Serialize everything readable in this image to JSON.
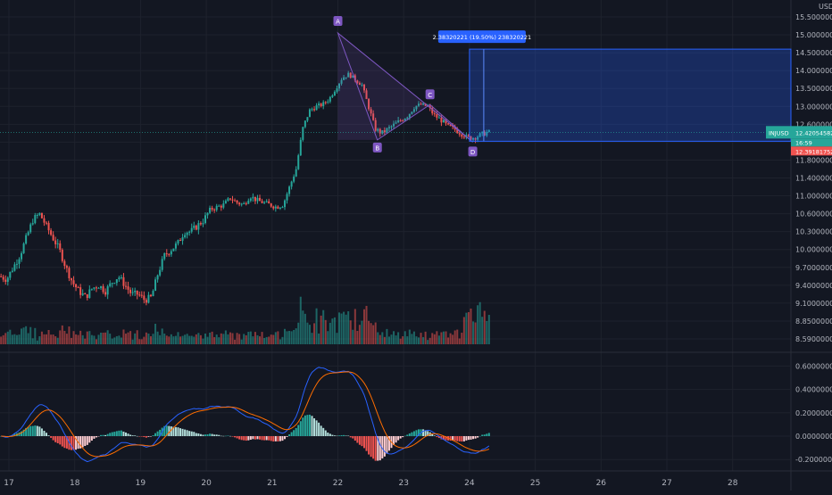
{
  "chart_data": {
    "type": "candlestick",
    "symbol": "INJUSD",
    "currency": "USD",
    "price_axis_ticks": [
      "15.50000000",
      "15.00000000",
      "14.50000000",
      "14.00000000",
      "13.50000000",
      "13.00000000",
      "12.60000000",
      "12.20000000",
      "11.80000000",
      "11.40000000",
      "11.00000000",
      "10.60000000",
      "10.30000000",
      "10.00000000",
      "9.70000000",
      "9.40000000",
      "9.10000000",
      "8.85000000",
      "8.59000000"
    ],
    "price_tick_values": [
      15.5,
      15.0,
      14.5,
      14.0,
      13.5,
      13.0,
      12.6,
      12.2,
      11.8,
      11.4,
      11.0,
      10.6,
      10.3,
      10.0,
      9.7,
      9.4,
      9.1,
      8.85,
      8.59
    ],
    "macd_axis_ticks": [
      "0.60000000",
      "0.40000000",
      "0.20000000",
      "0.00000000",
      "-0.20000000"
    ],
    "macd_tick_values": [
      0.6,
      0.4,
      0.2,
      0.0,
      -0.2
    ],
    "date_ticks": [
      "17",
      "18",
      "19",
      "20",
      "21",
      "22",
      "23",
      "24",
      "25",
      "26",
      "27",
      "28"
    ],
    "date_tick_values": [
      17,
      18,
      19,
      20,
      21,
      22,
      23,
      24,
      25,
      26,
      27,
      28
    ],
    "last_price_label": "INJUSD",
    "last_price": "12.42054582",
    "countdown": "16:59",
    "low_label": "12.39181752",
    "measure_label": "2.38320221 (19.50%) 238320221",
    "pattern_points": [
      "A",
      "B",
      "C",
      "D"
    ],
    "price_path": [
      [
        16.9,
        9.55
      ],
      [
        17.0,
        9.5
      ],
      [
        17.1,
        9.7
      ],
      [
        17.2,
        9.9
      ],
      [
        17.3,
        10.2
      ],
      [
        17.4,
        10.5
      ],
      [
        17.5,
        10.6
      ],
      [
        17.6,
        10.4
      ],
      [
        17.7,
        10.2
      ],
      [
        17.8,
        10.0
      ],
      [
        17.9,
        9.7
      ],
      [
        18.0,
        9.45
      ],
      [
        18.1,
        9.3
      ],
      [
        18.2,
        9.2
      ],
      [
        18.3,
        9.35
      ],
      [
        18.4,
        9.4
      ],
      [
        18.5,
        9.3
      ],
      [
        18.6,
        9.45
      ],
      [
        18.7,
        9.55
      ],
      [
        18.8,
        9.4
      ],
      [
        18.9,
        9.25
      ],
      [
        19.0,
        9.25
      ],
      [
        19.1,
        9.15
      ],
      [
        19.2,
        9.2
      ],
      [
        19.3,
        9.6
      ],
      [
        19.4,
        9.9
      ],
      [
        19.5,
        10.0
      ],
      [
        19.6,
        10.1
      ],
      [
        19.7,
        10.3
      ],
      [
        19.8,
        10.3
      ],
      [
        19.9,
        10.4
      ],
      [
        20.0,
        10.5
      ],
      [
        20.1,
        10.7
      ],
      [
        20.2,
        10.75
      ],
      [
        20.3,
        10.8
      ],
      [
        20.4,
        10.95
      ],
      [
        20.5,
        10.85
      ],
      [
        20.6,
        10.8
      ],
      [
        20.7,
        11.0
      ],
      [
        20.8,
        10.9
      ],
      [
        20.9,
        10.85
      ],
      [
        21.0,
        10.8
      ],
      [
        21.1,
        10.75
      ],
      [
        21.2,
        10.8
      ],
      [
        21.3,
        11.2
      ],
      [
        21.4,
        11.6
      ],
      [
        21.5,
        12.5
      ],
      [
        21.6,
        12.9
      ],
      [
        21.7,
        13.0
      ],
      [
        21.8,
        13.05
      ],
      [
        21.9,
        13.2
      ],
      [
        22.0,
        13.5
      ],
      [
        22.1,
        13.8
      ],
      [
        22.2,
        13.9
      ],
      [
        22.3,
        13.75
      ],
      [
        22.4,
        13.6
      ],
      [
        22.5,
        13.0
      ],
      [
        22.6,
        12.5
      ],
      [
        22.7,
        12.4
      ],
      [
        22.8,
        12.5
      ],
      [
        22.9,
        12.6
      ],
      [
        23.0,
        12.7
      ],
      [
        23.1,
        12.8
      ],
      [
        23.2,
        13.0
      ],
      [
        23.3,
        13.05
      ],
      [
        23.4,
        13.0
      ],
      [
        23.5,
        12.8
      ],
      [
        23.6,
        12.7
      ],
      [
        23.7,
        12.55
      ],
      [
        23.8,
        12.5
      ],
      [
        23.9,
        12.4
      ],
      [
        24.0,
        12.3
      ],
      [
        24.1,
        12.3
      ],
      [
        24.2,
        12.36
      ],
      [
        24.3,
        12.42
      ]
    ]
  }
}
